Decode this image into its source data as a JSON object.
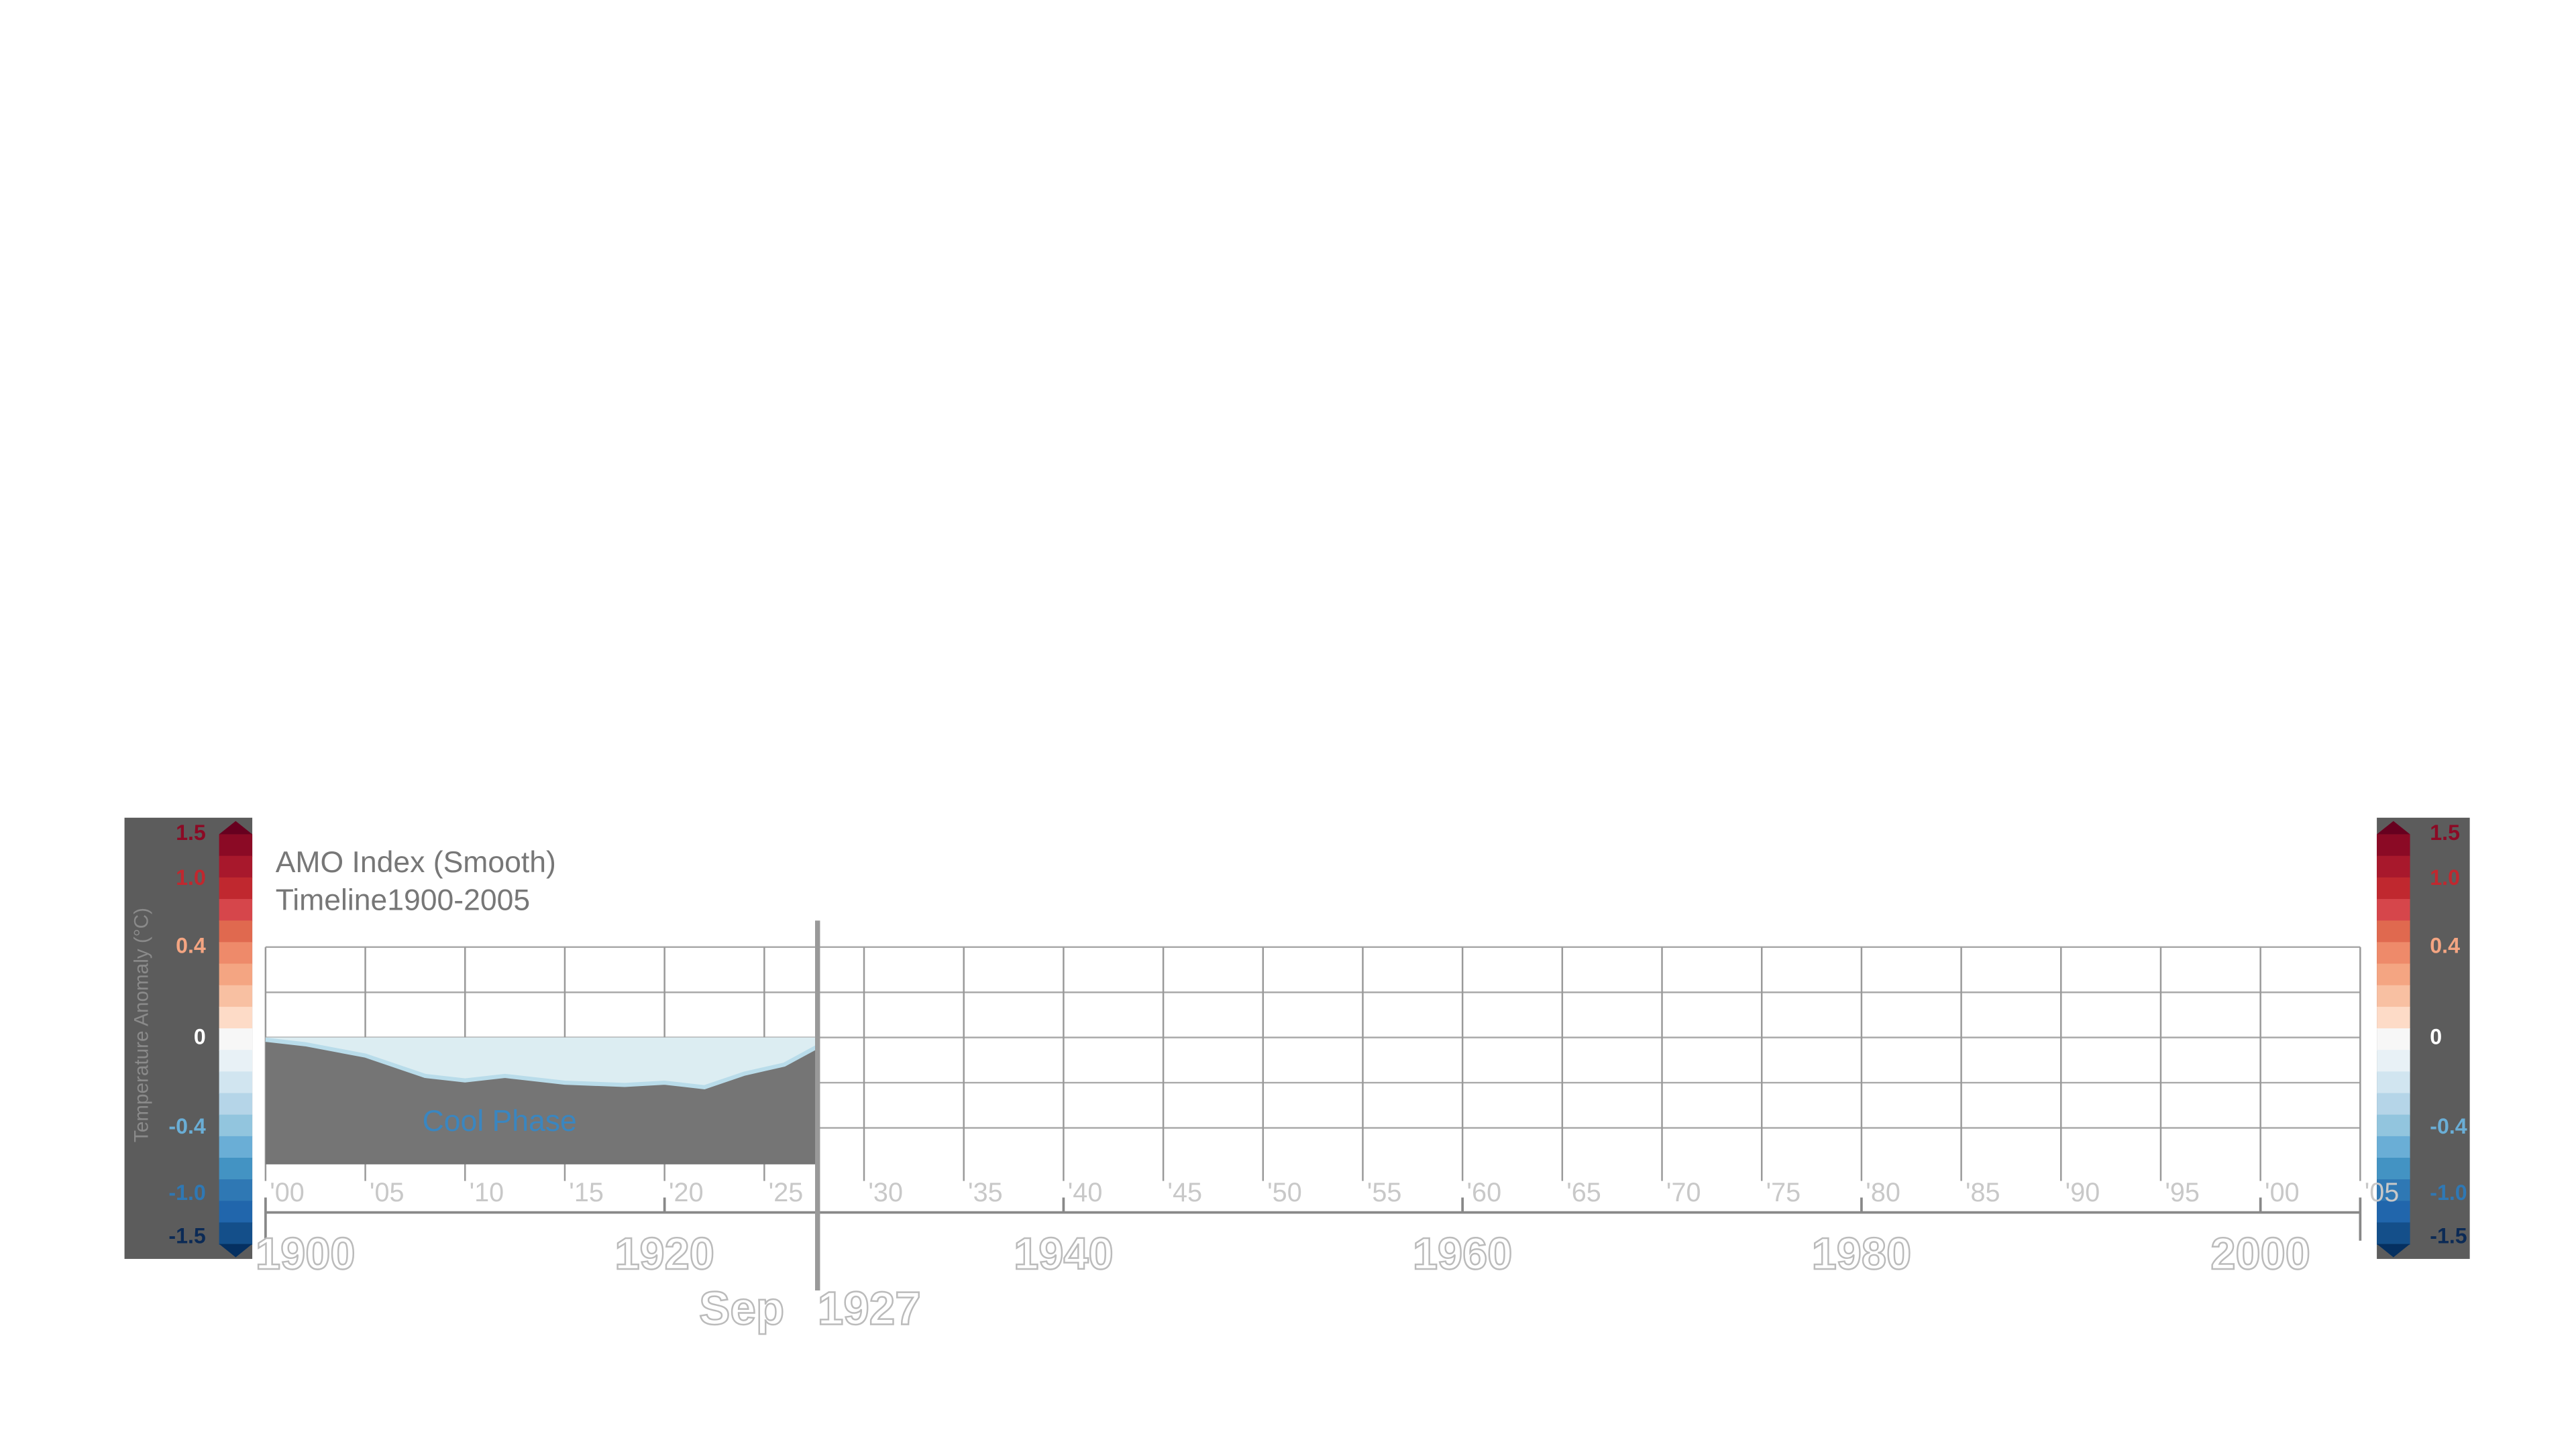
{
  "colorbar": {
    "title": "Temperature Anomaly (°C)",
    "labels": [
      "1.5",
      "1.0",
      "0.4",
      "0",
      "-0.4",
      "-1.0",
      "-1.5"
    ]
  },
  "panel": {
    "title": "AMO Index (Smooth)",
    "subtitle": "Timeline1900-2005"
  },
  "timeline": {
    "minor_labels": [
      "'00",
      "'05",
      "'10",
      "'15",
      "'20",
      "'25",
      "'30",
      "'35",
      "'40",
      "'45",
      "'50",
      "'55",
      "'60",
      "'65",
      "'70",
      "'75",
      "'80",
      "'85",
      "'90",
      "'95",
      "'00",
      "'05"
    ],
    "major_labels": [
      "1900",
      "1920",
      "1940",
      "1960",
      "1980",
      "2000"
    ],
    "cursor": {
      "month": "Sep",
      "year": "1927",
      "x": 1927.67
    }
  },
  "amo": {
    "phase_label": "Cool Phase",
    "xlim": [
      1900,
      2005
    ],
    "ylim": [
      -0.4,
      0.4
    ],
    "years": [
      1900,
      1902,
      1905,
      1908,
      1910,
      1912,
      1915,
      1918,
      1920,
      1922,
      1924,
      1926,
      1927.67
    ],
    "values": [
      -0.01,
      -0.03,
      -0.08,
      -0.17,
      -0.19,
      -0.17,
      -0.2,
      -0.21,
      -0.2,
      -0.22,
      -0.16,
      -0.12,
      -0.04
    ]
  }
}
